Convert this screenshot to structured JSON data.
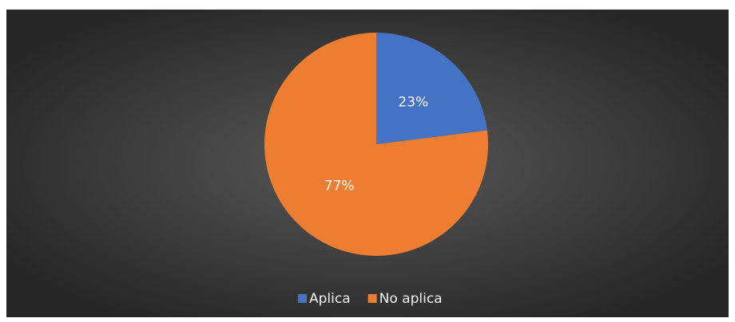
{
  "chart_data": {
    "type": "pie",
    "categories": [
      "Aplica",
      "No aplica"
    ],
    "values": [
      23,
      77
    ],
    "value_labels": [
      "23%",
      "77%"
    ],
    "colors": [
      "#4472c4",
      "#ed7d31"
    ],
    "legend": "bottom"
  }
}
